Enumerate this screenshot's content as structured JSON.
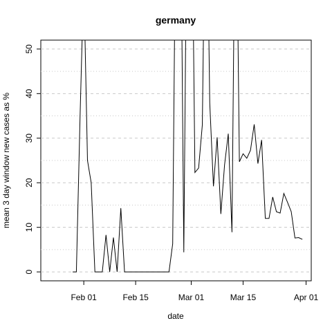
{
  "chart_data": {
    "type": "line",
    "title": "germany",
    "x_label": "date",
    "y_label": "mean  3  day window new cases as %",
    "categories": [
      "Jan 22",
      "Jan 23",
      "Jan 24",
      "Jan 25",
      "Jan 26",
      "Jan 27",
      "Jan 28",
      "Jan 29",
      "Jan 30",
      "Jan 31",
      "Feb 01",
      "Feb 02",
      "Feb 03",
      "Feb 04",
      "Feb 05",
      "Feb 06",
      "Feb 07",
      "Feb 08",
      "Feb 09",
      "Feb 10",
      "Feb 11",
      "Feb 12",
      "Feb 13",
      "Feb 14",
      "Feb 15",
      "Feb 16",
      "Feb 17",
      "Feb 18",
      "Feb 19",
      "Feb 20",
      "Feb 21",
      "Feb 22",
      "Feb 23",
      "Feb 24",
      "Feb 25",
      "Feb 26",
      "Feb 27",
      "Feb 28",
      "Feb 29",
      "Mar 01",
      "Mar 02",
      "Mar 03",
      "Mar 04",
      "Mar 05",
      "Mar 06",
      "Mar 07",
      "Mar 08",
      "Mar 09",
      "Mar 10",
      "Mar 11",
      "Mar 12",
      "Mar 13",
      "Mar 14",
      "Mar 15",
      "Mar 16",
      "Mar 17",
      "Mar 18",
      "Mar 19",
      "Mar 20",
      "Mar 21",
      "Mar 22",
      "Mar 23",
      "Mar 24",
      "Mar 25",
      "Mar 26",
      "Mar 27",
      "Mar 28",
      "Mar 29",
      "Mar 30",
      "Mar 31",
      "Apr 01"
    ],
    "values": [
      null,
      null,
      null,
      null,
      null,
      null,
      null,
      0,
      0,
      35,
      66,
      25,
      20,
      0,
      0,
      0,
      8.3,
      0,
      7.7,
      0,
      14.3,
      0,
      0,
      0,
      0,
      0,
      0,
      0,
      0,
      0,
      0,
      0,
      0,
      0,
      6.3,
      100,
      100,
      4.4,
      100,
      100,
      22.3,
      23.3,
      33,
      100,
      38,
      19.2,
      30.2,
      13,
      24,
      31,
      8.9,
      100,
      24.7,
      26.5,
      25.5,
      27.3,
      33.1,
      24.3,
      29.6,
      12,
      12,
      16.8,
      13.5,
      13.2,
      17.6,
      15.6,
      13.5,
      7.6,
      7.7,
      7.3,
      null
    ],
    "color": "#000000",
    "xticks": [
      "Feb 01",
      "Feb 15",
      "Mar 01",
      "Mar 15",
      "Apr 01"
    ],
    "ylim": [
      -2,
      52
    ],
    "yticks": [
      0,
      10,
      20,
      30,
      40,
      50
    ],
    "minor_gridlines": [
      5,
      15,
      25,
      35,
      45
    ],
    "grid": true
  }
}
